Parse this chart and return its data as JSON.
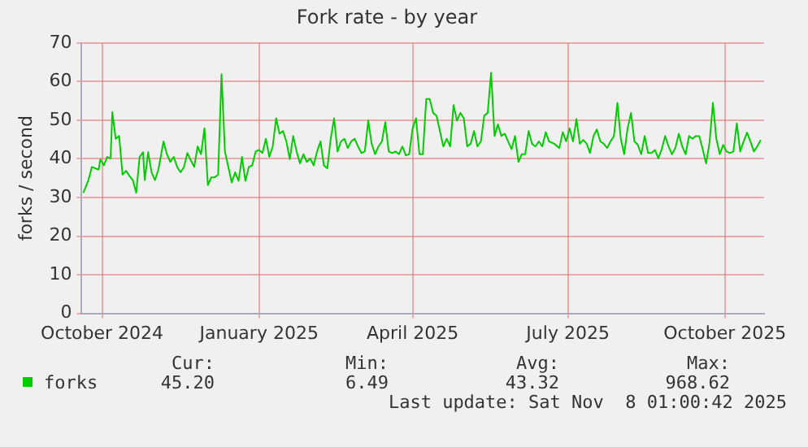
{
  "chart_data": {
    "type": "line",
    "title": "Fork rate - by year",
    "ylabel": "forks / second",
    "xlim": [
      "2024-10-04",
      "2025-11-08"
    ],
    "xticks": [
      {
        "value": "2024-10-16",
        "label": "October 2024"
      },
      {
        "value": "2025-01-16",
        "label": "January 2025"
      },
      {
        "value": "2025-04-16",
        "label": "April 2025"
      },
      {
        "value": "2025-07-16",
        "label": "July 2025"
      },
      {
        "value": "2025-10-16",
        "label": "October 2025"
      }
    ],
    "ylim": [
      0,
      70
    ],
    "yticks": [
      0,
      10,
      20,
      30,
      40,
      50,
      60,
      70
    ],
    "grid": true,
    "legend": "bottom",
    "marker": "none",
    "line_style": "solid",
    "x": [
      "2024-10-05",
      "2024-10-08",
      "2024-10-10",
      "2024-10-14",
      "2024-10-15",
      "2024-10-17",
      "2024-10-19",
      "2024-10-21",
      "2024-10-22",
      "2024-10-24",
      "2024-10-26",
      "2024-10-28",
      "2024-10-30",
      "2024-11-01",
      "2024-11-03",
      "2024-11-05",
      "2024-11-07",
      "2024-11-09",
      "2024-11-10",
      "2024-11-12",
      "2024-11-14",
      "2024-11-16",
      "2024-11-18",
      "2024-11-21",
      "2024-11-23",
      "2024-11-25",
      "2024-11-27",
      "2024-11-29",
      "2024-12-01",
      "2024-12-03",
      "2024-12-05",
      "2024-12-07",
      "2024-12-09",
      "2024-12-11",
      "2024-12-13",
      "2024-12-15",
      "2024-12-17",
      "2024-12-19",
      "2024-12-21",
      "2024-12-23",
      "2024-12-25",
      "2024-12-27",
      "2024-12-29",
      "2024-12-31",
      "2025-01-02",
      "2025-01-04",
      "2025-01-06",
      "2025-01-08",
      "2025-01-10",
      "2025-01-12",
      "2025-01-14",
      "2025-01-16",
      "2025-01-18",
      "2025-01-20",
      "2025-01-22",
      "2025-01-24",
      "2025-01-26",
      "2025-01-28",
      "2025-01-30",
      "2025-02-01",
      "2025-02-03",
      "2025-02-05",
      "2025-02-07",
      "2025-02-09",
      "2025-02-11",
      "2025-02-13",
      "2025-02-15",
      "2025-02-17",
      "2025-02-19",
      "2025-02-21",
      "2025-02-23",
      "2025-02-25",
      "2025-02-27",
      "2025-03-01",
      "2025-03-03",
      "2025-03-05",
      "2025-03-07",
      "2025-03-09",
      "2025-03-11",
      "2025-03-13",
      "2025-03-15",
      "2025-03-17",
      "2025-03-19",
      "2025-03-21",
      "2025-03-23",
      "2025-03-25",
      "2025-03-27",
      "2025-03-29",
      "2025-03-31",
      "2025-04-02",
      "2025-04-04",
      "2025-04-06",
      "2025-04-08",
      "2025-04-10",
      "2025-04-12",
      "2025-04-14",
      "2025-04-16",
      "2025-04-18",
      "2025-04-20",
      "2025-04-22",
      "2025-04-24",
      "2025-04-26",
      "2025-04-28",
      "2025-04-30",
      "2025-05-02",
      "2025-05-04",
      "2025-05-06",
      "2025-05-08",
      "2025-05-10",
      "2025-05-12",
      "2025-05-14",
      "2025-05-16",
      "2025-05-18",
      "2025-05-20",
      "2025-05-22",
      "2025-05-24",
      "2025-05-26",
      "2025-05-28",
      "2025-05-30",
      "2025-06-01",
      "2025-06-03",
      "2025-06-05",
      "2025-06-07",
      "2025-06-09",
      "2025-06-11",
      "2025-06-13",
      "2025-06-15",
      "2025-06-17",
      "2025-06-19",
      "2025-06-21",
      "2025-06-23",
      "2025-06-25",
      "2025-06-27",
      "2025-06-29",
      "2025-07-01",
      "2025-07-03",
      "2025-07-05",
      "2025-07-08",
      "2025-07-11",
      "2025-07-13",
      "2025-07-15",
      "2025-07-17",
      "2025-07-19",
      "2025-07-21",
      "2025-07-23",
      "2025-07-25",
      "2025-07-27",
      "2025-07-29",
      "2025-07-31",
      "2025-08-02",
      "2025-08-04",
      "2025-08-06",
      "2025-08-08",
      "2025-08-10",
      "2025-08-12",
      "2025-08-14",
      "2025-08-16",
      "2025-08-18",
      "2025-08-20",
      "2025-08-22",
      "2025-08-24",
      "2025-08-26",
      "2025-08-28",
      "2025-08-30",
      "2025-09-01",
      "2025-09-03",
      "2025-09-05",
      "2025-09-07",
      "2025-09-09",
      "2025-09-11",
      "2025-09-13",
      "2025-09-15",
      "2025-09-17",
      "2025-09-19",
      "2025-09-21",
      "2025-09-23",
      "2025-09-25",
      "2025-09-27",
      "2025-09-29",
      "2025-10-01",
      "2025-10-03",
      "2025-10-05",
      "2025-10-07",
      "2025-10-09",
      "2025-10-11",
      "2025-10-13",
      "2025-10-15",
      "2025-10-17",
      "2025-10-19",
      "2025-10-21",
      "2025-10-23",
      "2025-10-25",
      "2025-10-27",
      "2025-10-29",
      "2025-10-31",
      "2025-11-02",
      "2025-11-04",
      "2025-11-06"
    ],
    "series": [
      {
        "name": "forks",
        "color": "#00cc00",
        "values": [
          31.2,
          34.5,
          37.9,
          37.2,
          39.9,
          38.3,
          40.5,
          40.1,
          52.1,
          45.2,
          45.9,
          35.9,
          36.9,
          35.6,
          34.5,
          31.2,
          40.5,
          41.7,
          34.5,
          41.7,
          36.5,
          34.5,
          37.2,
          44.5,
          41.2,
          39.2,
          40.5,
          37.9,
          36.5,
          37.9,
          41.5,
          39.6,
          37.9,
          43.2,
          41.2,
          47.9,
          33.2,
          35.2,
          35.2,
          35.9,
          61.9,
          41.9,
          37.9,
          33.9,
          36.5,
          34.3,
          40.5,
          34.3,
          37.9,
          38.3,
          41.9,
          42.3,
          41.5,
          45.2,
          40.5,
          43.2,
          50.5,
          46.5,
          47.2,
          44.5,
          39.9,
          45.9,
          41.9,
          38.8,
          41.2,
          39.2,
          40.1,
          38.3,
          41.9,
          44.5,
          38.3,
          37.5,
          45.2,
          50.5,
          41.9,
          44.5,
          45.2,
          42.8,
          44.5,
          45.2,
          43.2,
          41.5,
          41.9,
          49.9,
          43.9,
          41.2,
          43.2,
          44.5,
          49.5,
          41.9,
          41.5,
          41.9,
          41.2,
          43.2,
          40.9,
          41.2,
          47.9,
          50.5,
          41.2,
          41.2,
          55.5,
          55.5,
          51.9,
          51.2,
          47.2,
          43.2,
          45.2,
          43.2,
          53.9,
          49.9,
          51.9,
          50.5,
          43.2,
          43.9,
          47.2,
          43.2,
          44.5,
          51.2,
          51.9,
          62.3,
          45.9,
          48.9,
          45.9,
          46.5,
          44.5,
          42.5,
          45.9,
          39.2,
          41.2,
          41.2,
          47.2,
          43.9,
          43.2,
          44.5,
          43.2,
          46.9,
          44.5,
          43.9,
          42.8,
          46.9,
          44.5,
          47.9,
          44.5,
          50.3,
          43.9,
          44.9,
          43.9,
          41.5,
          45.9,
          47.6,
          44.5,
          43.9,
          42.8,
          44.5,
          45.9,
          54.5,
          45.2,
          41.2,
          47.9,
          51.9,
          44.5,
          43.6,
          41.2,
          45.9,
          41.5,
          41.5,
          42.3,
          40.1,
          42.5,
          45.9,
          43.2,
          41.2,
          42.8,
          46.5,
          43.2,
          41.2,
          45.9,
          45.2,
          45.9,
          45.9,
          42.5,
          38.8,
          44.1,
          54.5,
          45.2,
          41.2,
          43.6,
          41.9,
          41.5,
          41.9,
          49.2,
          41.9,
          44.5,
          46.8,
          44.5,
          41.9,
          43.2,
          44.9
        ]
      }
    ],
    "annotations": [
      "Cur:",
      "Min:",
      "Avg:",
      "Max:",
      "45.20",
      "6.49",
      "43.32",
      "968.62",
      "Last update: Sat Nov  8 01:00:42 2025"
    ]
  }
}
